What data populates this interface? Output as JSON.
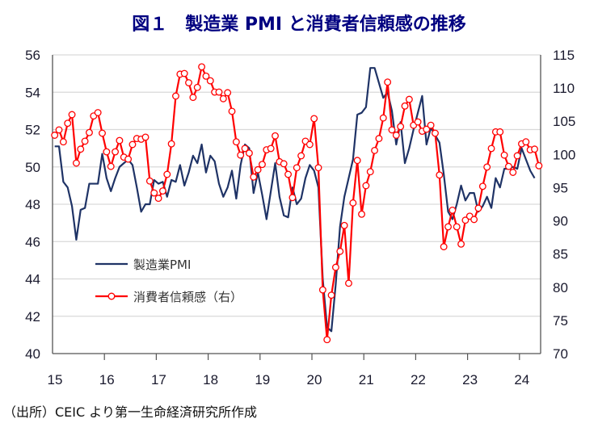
{
  "title": "図１　製造業 PMI と消費者信頼感の推移",
  "source": "（出所）CEIC より第一生命経済研究所作成",
  "colors": {
    "pmi": "#1f3366",
    "consumer": "#ff0000",
    "title": "#000080",
    "grid": "#d9d9d9"
  },
  "chart_data": {
    "type": "line",
    "title": "図１　製造業 PMI と消費者信頼感の推移",
    "x_start": "2015-01",
    "frequency": "monthly",
    "x_tick_labels": [
      "15",
      "16",
      "17",
      "18",
      "19",
      "20",
      "21",
      "22",
      "23",
      "24"
    ],
    "y_left": {
      "range": [
        40,
        56
      ],
      "ticks": [
        "40",
        "42",
        "44",
        "46",
        "48",
        "50",
        "52",
        "54",
        "56"
      ]
    },
    "y_right": {
      "range": [
        70,
        115
      ],
      "ticks": [
        "70",
        "75",
        "80",
        "85",
        "90",
        "95",
        "100",
        "105",
        "110",
        "115"
      ]
    },
    "grid": true,
    "legend_placement": "bottom-left inside",
    "series": [
      {
        "name": "製造業PMI",
        "axis": "left",
        "marker": "none",
        "values": [
          51.1,
          51.1,
          49.2,
          48.9,
          47.9,
          46.1,
          47.7,
          47.8,
          49.1,
          49.1,
          49.1,
          50.7,
          49.4,
          48.7,
          49.4,
          50.0,
          50.2,
          50.4,
          50.1,
          48.9,
          47.6,
          48.0,
          48.0,
          49.3,
          49.1,
          49.2,
          48.4,
          49.3,
          49.2,
          50.1,
          49.0,
          49.7,
          50.6,
          50.2,
          51.2,
          49.7,
          50.6,
          50.3,
          49.1,
          48.4,
          48.9,
          49.8,
          48.3,
          50.1,
          51.2,
          51.0,
          48.6,
          49.7,
          48.5,
          47.2,
          48.7,
          50.2,
          48.4,
          47.4,
          47.3,
          48.9,
          48.0,
          48.3,
          49.4,
          50.1,
          49.8,
          48.9,
          44.0,
          41.4,
          41.2,
          43.7,
          46.8,
          48.4,
          49.4,
          50.4,
          52.8,
          52.9,
          53.2,
          55.3,
          55.3,
          54.5,
          53.7,
          54.0,
          53.0,
          51.2,
          52.4,
          50.2,
          51.0,
          52.0,
          52.9,
          53.8,
          51.2,
          52.1,
          51.7,
          51.3,
          49.6,
          47.6,
          47.2,
          48.0,
          49.0,
          48.2,
          48.6,
          48.6,
          47.6,
          47.9,
          48.4,
          47.8,
          49.4,
          48.9,
          49.9,
          49.9,
          50.0,
          49.9,
          51.0,
          50.4,
          49.8,
          49.4
        ]
      },
      {
        "name": "消費者信頼感（右）",
        "axis": "right",
        "marker": "circle",
        "values": [
          102.9,
          103.7,
          101.9,
          104.7,
          106.0,
          98.7,
          100.8,
          102.0,
          103.3,
          105.8,
          106.3,
          103.2,
          100.4,
          98.2,
          100.4,
          102.1,
          99.6,
          99.3,
          101.5,
          102.4,
          102.3,
          102.6,
          96.0,
          94.2,
          93.4,
          94.5,
          97.0,
          101.6,
          108.8,
          112.1,
          112.2,
          110.8,
          108.6,
          110.1,
          113.2,
          111.8,
          111.1,
          109.4,
          109.4,
          108.4,
          109.3,
          106.5,
          101.9,
          99.9,
          100.9,
          100.2,
          96.6,
          97.7,
          98.5,
          100.7,
          100.9,
          102.8,
          98.9,
          98.6,
          97.0,
          93.5,
          98.0,
          99.8,
          102.0,
          101.5,
          105.4,
          98.0,
          79.6,
          72.1,
          78.8,
          83.0,
          85.4,
          89.3,
          80.6,
          92.7,
          99.1,
          91.0,
          95.3,
          97.4,
          100.6,
          102.4,
          105.5,
          110.9,
          103.7,
          102.9,
          104.2,
          107.3,
          108.3,
          104.4,
          104.9,
          103.5,
          103.8,
          104.4,
          103.2,
          96.9,
          86.1,
          89.1,
          91.6,
          89.1,
          86.5,
          90.1,
          90.7,
          90.2,
          91.9,
          95.2,
          98.1,
          100.9,
          103.4,
          103.4,
          99.9,
          98.2,
          97.3,
          99.8,
          101.6,
          101.9,
          100.7,
          100.8,
          98.3
        ]
      }
    ]
  }
}
